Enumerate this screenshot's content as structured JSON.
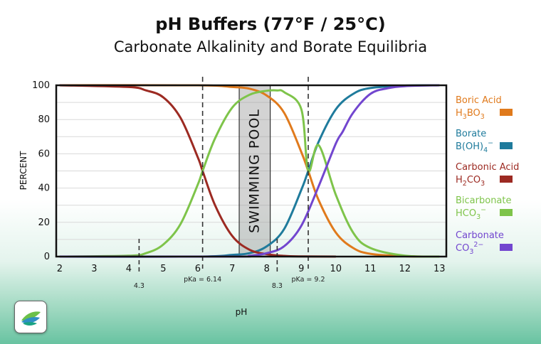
{
  "title": "pH Buffers (77°F / 25°C)",
  "subtitle": "Carbonate Alkalinity and Borate Equilibria",
  "colors": {
    "boric_acid": "#e07a1c",
    "borate": "#1f7b9c",
    "carbonic_acid": "#9c2a22",
    "bicarbonate": "#7ec44a",
    "carbonate": "#7246cf"
  },
  "chart_data": {
    "type": "line",
    "xlabel": "pH",
    "ylabel": "PERCENT",
    "xlim": [
      1.9,
      13.2
    ],
    "ylim": [
      0,
      100
    ],
    "xticks": [
      2,
      3,
      4,
      5,
      6,
      7,
      8,
      9,
      10,
      11,
      12,
      13
    ],
    "yticks": [
      0,
      20,
      40,
      60,
      80,
      100
    ],
    "grid": "horizontal",
    "legend_position": "right",
    "series": [
      {
        "key": "boric_acid",
        "name": "Boric Acid",
        "formula": "H3BO3",
        "x": [
          2,
          6,
          7,
          7.5,
          8,
          8.5,
          9,
          9.2,
          9.5,
          10,
          10.5,
          11,
          12,
          13
        ],
        "y": [
          100,
          100,
          99,
          98,
          94,
          84,
          61,
          50,
          33,
          14,
          5,
          1.6,
          0.2,
          0
        ]
      },
      {
        "key": "borate",
        "name": "Borate",
        "formula": "B(OH)4-",
        "x": [
          2,
          6,
          7,
          7.5,
          8,
          8.5,
          9,
          9.2,
          9.5,
          10,
          10.5,
          11,
          12,
          13
        ],
        "y": [
          0,
          0,
          1,
          2,
          6,
          16,
          39,
          50,
          67,
          86,
          95,
          98.4,
          99.8,
          100
        ]
      },
      {
        "key": "carbonic_acid",
        "name": "Carbonic Acid",
        "formula": "H2CO3",
        "x": [
          2,
          4,
          4.5,
          5,
          5.5,
          6,
          6.14,
          6.5,
          7,
          7.5,
          8,
          8.5,
          9,
          10
        ],
        "y": [
          100,
          99,
          97,
          93,
          81,
          58,
          50,
          30,
          12,
          4,
          1.4,
          0.4,
          0.1,
          0
        ]
      },
      {
        "key": "bicarbonate",
        "name": "Bicarbonate",
        "formula": "HCO3-",
        "x": [
          2,
          4,
          4.5,
          5,
          5.5,
          6,
          6.14,
          6.5,
          7,
          7.5,
          8,
          8.3,
          8.5,
          9,
          9.2,
          9.5,
          10,
          10.5,
          11,
          12,
          13
        ],
        "y": [
          0,
          0.5,
          2,
          7,
          19,
          42,
          50,
          69,
          87,
          94.5,
          96.8,
          97,
          96,
          86,
          50,
          65,
          36,
          14,
          5,
          0.5,
          0
        ]
      },
      {
        "key": "carbonate",
        "name": "Carbonate",
        "formula": "CO3 2-",
        "x": [
          2,
          7,
          7.5,
          8,
          8.5,
          9,
          9.5,
          10,
          10.2,
          10.5,
          11,
          11.5,
          12,
          13
        ],
        "y": [
          0,
          0,
          0.4,
          2,
          6,
          18,
          41,
          66,
          73,
          84,
          95,
          98.3,
          99.5,
          100
        ]
      }
    ],
    "vlines": [
      {
        "x": 4.3,
        "label": "4.3",
        "style": "short-dashed"
      },
      {
        "x": 6.14,
        "label": "pKa = 6.14",
        "style": "dashed"
      },
      {
        "x": 8.3,
        "label": "8.3",
        "style": "short-dashed"
      },
      {
        "x": 9.2,
        "label": "pKa = 9.2",
        "style": "dashed"
      }
    ],
    "band": {
      "x": [
        7.2,
        8.1
      ],
      "label": "SWIMMING POOL"
    }
  }
}
